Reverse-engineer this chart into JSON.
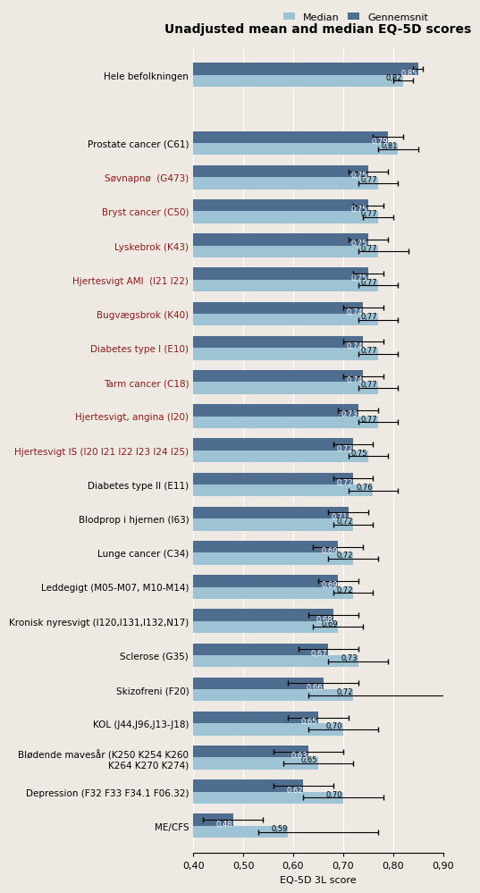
{
  "title": "Unadjusted mean and median EQ-5D scores",
  "xlabel": "EQ-5D 3L score",
  "legend_median": "Median",
  "legend_mean": "Gennemsnit",
  "xlim": [
    0.4,
    0.9
  ],
  "xticks": [
    0.4,
    0.5,
    0.6,
    0.7,
    0.8,
    0.9
  ],
  "xtick_labels": [
    "0,40",
    "0,50",
    "0,60",
    "0,70",
    "0,80",
    "0,90"
  ],
  "color_median": "#9DC3D4",
  "color_mean": "#4F6D8F",
  "bar_height": 0.35,
  "categories": [
    "Hele befolkningen",
    "",
    "Prostate cancer (C61)",
    "Søvnapnø  (G473)",
    "Bryst cancer (C50)",
    "Lyskebrok (K43)",
    "Hjertesvigt AMI  (I21 I22)",
    "Bugvægsbrok (K40)",
    "Diabetes type I (E10)",
    "Tarm cancer (C18)",
    "Hjertesvigt, angina (I20)",
    "Hjertesvigt IS (I20 I21 I22 I23 I24 I25)",
    "Diabetes type II (E11)",
    "Blodprop i hjernen (I63)",
    "Lunge cancer (C34)",
    "Leddegigt (M05-M07, M10-M14)",
    "Kronisk nyresvigt (I120,I131,I132,N17)",
    "Sclerose (G35)",
    "Skizofreni (F20)",
    "KOL (J44,J96,J13-J18)",
    "Blødende mavesår (K250 K254 K260\nK264 K270 K274)",
    "Depression (F32 F33 F34.1 F06.32)",
    "ME/CFS"
  ],
  "median_values": [
    0.82,
    null,
    0.81,
    0.77,
    0.77,
    0.77,
    0.77,
    0.77,
    0.77,
    0.77,
    0.77,
    0.75,
    0.76,
    0.72,
    0.72,
    0.72,
    0.69,
    0.73,
    0.72,
    0.7,
    0.65,
    0.7,
    0.59
  ],
  "mean_values": [
    0.85,
    null,
    0.79,
    0.75,
    0.75,
    0.75,
    0.75,
    0.74,
    0.74,
    0.74,
    0.73,
    0.72,
    0.72,
    0.71,
    0.69,
    0.69,
    0.68,
    0.67,
    0.66,
    0.65,
    0.63,
    0.62,
    0.48
  ],
  "median_err_low": [
    0.02,
    null,
    0.04,
    0.04,
    0.03,
    0.04,
    0.04,
    0.04,
    0.04,
    0.04,
    0.04,
    0.04,
    0.05,
    0.04,
    0.05,
    0.04,
    0.05,
    0.06,
    0.09,
    0.07,
    0.07,
    0.08,
    0.06
  ],
  "median_err_high": [
    0.02,
    null,
    0.04,
    0.04,
    0.03,
    0.06,
    0.04,
    0.04,
    0.04,
    0.04,
    0.04,
    0.04,
    0.05,
    0.04,
    0.05,
    0.04,
    0.05,
    0.06,
    0.25,
    0.07,
    0.07,
    0.08,
    0.18
  ],
  "mean_err_low": [
    0.01,
    null,
    0.03,
    0.04,
    0.03,
    0.04,
    0.03,
    0.04,
    0.04,
    0.04,
    0.04,
    0.04,
    0.04,
    0.04,
    0.05,
    0.04,
    0.05,
    0.06,
    0.07,
    0.06,
    0.07,
    0.06,
    0.06
  ],
  "mean_err_high": [
    0.01,
    null,
    0.03,
    0.04,
    0.03,
    0.04,
    0.03,
    0.04,
    0.04,
    0.04,
    0.04,
    0.04,
    0.04,
    0.04,
    0.05,
    0.04,
    0.05,
    0.06,
    0.07,
    0.06,
    0.07,
    0.06,
    0.06
  ],
  "label_colors": [
    "black",
    "black",
    "black",
    "#8B1A1A",
    "#8B1A1A",
    "#8B1A1A",
    "#8B1A1A",
    "#8B1A1A",
    "#8B1A1A",
    "#8B1A1A",
    "#8B1A1A",
    "#8B1A1A",
    "black",
    "black",
    "black",
    "black",
    "black",
    "black",
    "black",
    "black",
    "black",
    "black",
    "black"
  ],
  "background_color": "#EEEAE3"
}
